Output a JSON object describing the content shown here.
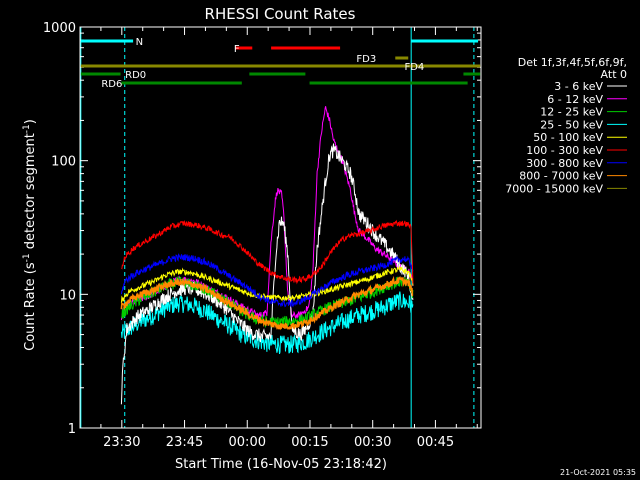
{
  "chart_data": {
    "type": "line",
    "title": "RHESSI Count Rates",
    "xlabel": "Start Time (16-Nov-05 23:18:42)",
    "ylabel_main": "Count Rate (s",
    "ylabel_sup1": "-1",
    "ylabel_mid": " detector segment",
    "ylabel_sup2": "-1",
    "ylabel_end": ")",
    "ylim": [
      1,
      1000
    ],
    "yscale": "log",
    "xlim_minutes": [
      1.3,
      97.2
    ],
    "x_ticks": [
      {
        "label": "23:30",
        "m": 11.3
      },
      {
        "label": "23:45",
        "m": 26.3
      },
      {
        "label": "00:00",
        "m": 41.3
      },
      {
        "label": "00:15",
        "m": 56.3
      },
      {
        "label": "00:30",
        "m": 71.3
      },
      {
        "label": "00:45",
        "m": 86.3
      }
    ],
    "y_ticks": [
      {
        "label": "1",
        "v": 1
      },
      {
        "label": "10",
        "v": 10
      },
      {
        "label": "100",
        "v": 100
      },
      {
        "label": "1000",
        "v": 1000
      }
    ],
    "footer": "21-Oct-2021 05:35",
    "legend_header": [
      "Det 1f,3f,4f,5f,6f,9f,",
      "Att 0"
    ],
    "series": [
      {
        "name": "3 - 6 keV",
        "color": "#ffffff",
        "points": [
          [
            11.2,
            1.6
          ],
          [
            11.6,
            3.0
          ],
          [
            12.5,
            5.5
          ],
          [
            15,
            6.8
          ],
          [
            18,
            7.8
          ],
          [
            21,
            9.2
          ],
          [
            24,
            10.5
          ],
          [
            27,
            11.2
          ],
          [
            30,
            10.6
          ],
          [
            33,
            9.5
          ],
          [
            36,
            8.0
          ],
          [
            39,
            6.3
          ],
          [
            42,
            5.2
          ],
          [
            45,
            4.8
          ],
          [
            47,
            4.9
          ],
          [
            48,
            18
          ],
          [
            49,
            35
          ],
          [
            50,
            34
          ],
          [
            51,
            20
          ],
          [
            52,
            5.5
          ],
          [
            54,
            5.0
          ],
          [
            55,
            5.3
          ],
          [
            57,
            7
          ],
          [
            58,
            22
          ],
          [
            60,
            70
          ],
          [
            61,
            110
          ],
          [
            62,
            120
          ],
          [
            64,
            100
          ],
          [
            66,
            80
          ],
          [
            67,
            60
          ],
          [
            68,
            40
          ],
          [
            70,
            34
          ],
          [
            72,
            28
          ],
          [
            74,
            24
          ],
          [
            76,
            20
          ],
          [
            77,
            18
          ],
          [
            78,
            16
          ],
          [
            79,
            15
          ],
          [
            80,
            13
          ],
          [
            81,
            8
          ]
        ]
      },
      {
        "name": "6 - 12 keV",
        "color": "#ff00ff",
        "points": [
          [
            11.2,
            6.8
          ],
          [
            12,
            8
          ],
          [
            14,
            8.8
          ],
          [
            17,
            9.5
          ],
          [
            20,
            10.5
          ],
          [
            23,
            12.3
          ],
          [
            26,
            13
          ],
          [
            29,
            12.5
          ],
          [
            32,
            11
          ],
          [
            35,
            10
          ],
          [
            38,
            8.8
          ],
          [
            41,
            7.8
          ],
          [
            44,
            6.9
          ],
          [
            46,
            7.3
          ],
          [
            47,
            25
          ],
          [
            48,
            50
          ],
          [
            48.5,
            60
          ],
          [
            49.5,
            56
          ],
          [
            50,
            40
          ],
          [
            51,
            10
          ],
          [
            52,
            6.9
          ],
          [
            54,
            7
          ],
          [
            56,
            8
          ],
          [
            57,
            15
          ],
          [
            58,
            80
          ],
          [
            59,
            160
          ],
          [
            60,
            250
          ],
          [
            61,
            200
          ],
          [
            62,
            140
          ],
          [
            64,
            100
          ],
          [
            66,
            60
          ],
          [
            67,
            40
          ],
          [
            68,
            30
          ],
          [
            70,
            26
          ],
          [
            72,
            22
          ],
          [
            74,
            20
          ],
          [
            76,
            18
          ],
          [
            78,
            16
          ],
          [
            80,
            15
          ],
          [
            81,
            12
          ]
        ]
      },
      {
        "name": "12 - 25 keV",
        "color": "#00cc00",
        "points": [
          [
            11.2,
            7
          ],
          [
            13,
            8
          ],
          [
            16,
            9.3
          ],
          [
            19,
            10.4
          ],
          [
            22,
            11.7
          ],
          [
            25,
            12.3
          ],
          [
            28,
            11.8
          ],
          [
            31,
            11
          ],
          [
            34,
            9.8
          ],
          [
            37,
            8.6
          ],
          [
            40,
            7.4
          ],
          [
            43,
            6.6
          ],
          [
            46,
            6.2
          ],
          [
            49,
            6.2
          ],
          [
            52,
            6.3
          ],
          [
            55,
            6.5
          ],
          [
            58,
            7.3
          ],
          [
            61,
            8
          ],
          [
            64,
            8.6
          ],
          [
            67,
            9.2
          ],
          [
            70,
            10
          ],
          [
            73,
            11
          ],
          [
            76,
            12
          ],
          [
            78,
            12.5
          ],
          [
            80,
            11.8
          ],
          [
            81,
            9.6
          ]
        ]
      },
      {
        "name": "25 - 50 keV",
        "color": "#00ffff",
        "points": [
          [
            11.2,
            5.0
          ],
          [
            13,
            5.5
          ],
          [
            16,
            6.3
          ],
          [
            19,
            7
          ],
          [
            22,
            8
          ],
          [
            25,
            8.6
          ],
          [
            28,
            8.3
          ],
          [
            31,
            7.6
          ],
          [
            34,
            6.6
          ],
          [
            37,
            5.8
          ],
          [
            40,
            5.0
          ],
          [
            43,
            4.6
          ],
          [
            46,
            4.3
          ],
          [
            49,
            4.2
          ],
          [
            52,
            4.2
          ],
          [
            55,
            4.4
          ],
          [
            58,
            5.0
          ],
          [
            61,
            5.6
          ],
          [
            64,
            6.2
          ],
          [
            67,
            6.8
          ],
          [
            70,
            7.3
          ],
          [
            73,
            7.8
          ],
          [
            76,
            8.6
          ],
          [
            78,
            9
          ],
          [
            80,
            8.6
          ],
          [
            81,
            7.8
          ]
        ]
      },
      {
        "name": "50 - 100 keV",
        "color": "#ffff00",
        "points": [
          [
            11.2,
            9
          ],
          [
            13,
            10.5
          ],
          [
            16,
            11.5
          ],
          [
            19,
            12.5
          ],
          [
            22,
            14
          ],
          [
            25,
            14.8
          ],
          [
            28,
            14.5
          ],
          [
            31,
            13.5
          ],
          [
            34,
            12.5
          ],
          [
            37,
            11.5
          ],
          [
            40,
            10.6
          ],
          [
            43,
            9.9
          ],
          [
            46,
            9.5
          ],
          [
            49,
            9.4
          ],
          [
            52,
            9.4
          ],
          [
            55,
            9.7
          ],
          [
            58,
            10.2
          ],
          [
            61,
            10.8
          ],
          [
            64,
            11.5
          ],
          [
            67,
            12.2
          ],
          [
            70,
            13
          ],
          [
            73,
            14
          ],
          [
            76,
            15
          ],
          [
            78,
            15.3
          ],
          [
            80,
            14.5
          ],
          [
            81,
            12
          ]
        ]
      },
      {
        "name": "100 - 300 keV",
        "color": "#ff0000",
        "points": [
          [
            11.2,
            15
          ],
          [
            12,
            19
          ],
          [
            14,
            22
          ],
          [
            17,
            25
          ],
          [
            20,
            28
          ],
          [
            23,
            32
          ],
          [
            26,
            34
          ],
          [
            29,
            33
          ],
          [
            32,
            31
          ],
          [
            35,
            28
          ],
          [
            37,
            27
          ],
          [
            39,
            24
          ],
          [
            41,
            21
          ],
          [
            43,
            18
          ],
          [
            45,
            16
          ],
          [
            48,
            14
          ],
          [
            51,
            13
          ],
          [
            53,
            12.8
          ],
          [
            55,
            13
          ],
          [
            57,
            14
          ],
          [
            59,
            16
          ],
          [
            61,
            20
          ],
          [
            63,
            24
          ],
          [
            65,
            27
          ],
          [
            67,
            28
          ],
          [
            69,
            29
          ],
          [
            71,
            30
          ],
          [
            73,
            32
          ],
          [
            75,
            33
          ],
          [
            77,
            34
          ],
          [
            79,
            34
          ],
          [
            80.5,
            32
          ],
          [
            81,
            10
          ]
        ]
      },
      {
        "name": "300 - 800 keV",
        "color": "#0000ff",
        "points": [
          [
            11.2,
            10
          ],
          [
            12,
            12.5
          ],
          [
            14,
            14
          ],
          [
            17,
            15.5
          ],
          [
            20,
            16.8
          ],
          [
            23,
            18.5
          ],
          [
            26,
            19
          ],
          [
            29,
            18.5
          ],
          [
            32,
            17
          ],
          [
            35,
            15
          ],
          [
            38,
            13
          ],
          [
            41,
            11.5
          ],
          [
            44,
            9.8
          ],
          [
            47,
            8.8
          ],
          [
            50,
            8.5
          ],
          [
            53,
            8.6
          ],
          [
            56,
            9.5
          ],
          [
            59,
            11
          ],
          [
            62,
            12.5
          ],
          [
            65,
            13.8
          ],
          [
            68,
            14.8
          ],
          [
            71,
            15.5
          ],
          [
            74,
            16.5
          ],
          [
            77,
            18
          ],
          [
            79,
            18.5
          ],
          [
            80.5,
            17
          ],
          [
            81,
            14
          ]
        ]
      },
      {
        "name": "800 - 7000 keV",
        "color": "#ff8800",
        "points": [
          [
            11.2,
            8
          ],
          [
            13,
            9
          ],
          [
            16,
            10
          ],
          [
            19,
            10.8
          ],
          [
            22,
            11.8
          ],
          [
            25,
            12.3
          ],
          [
            28,
            12
          ],
          [
            31,
            11
          ],
          [
            34,
            9.8
          ],
          [
            37,
            8.6
          ],
          [
            40,
            7.6
          ],
          [
            43,
            6.7
          ],
          [
            46,
            6.1
          ],
          [
            49,
            5.8
          ],
          [
            52,
            5.8
          ],
          [
            55,
            6.1
          ],
          [
            58,
            6.9
          ],
          [
            61,
            7.8
          ],
          [
            64,
            8.8
          ],
          [
            67,
            9.7
          ],
          [
            70,
            10.5
          ],
          [
            73,
            11.3
          ],
          [
            76,
            12.3
          ],
          [
            78,
            12.8
          ],
          [
            80,
            12
          ],
          [
            81,
            10
          ]
        ]
      },
      {
        "name": "7000 - 15000 keV",
        "color": "#888800",
        "points": []
      }
    ],
    "flag_bars": [
      {
        "label": "N",
        "color": "#00ffff",
        "y": 41,
        "label_m": 14.6,
        "segments": [
          [
            1.5,
            14.0
          ],
          [
            80.5,
            96.5
          ]
        ]
      },
      {
        "label": "F",
        "color": "#ff0000",
        "y": 48,
        "label_m": 38.1,
        "segments": [
          [
            38.5,
            42.5
          ],
          [
            47.0,
            63.5
          ]
        ]
      },
      {
        "label": "FD3",
        "color": "#888800",
        "y": 58,
        "label_m": 67.4,
        "segments": [
          [
            76.7,
            79.8
          ]
        ]
      },
      {
        "label": "FD4",
        "color": "#888800",
        "y": 66,
        "label_m": 78.9,
        "segments": [
          [
            1.5,
            97.0
          ]
        ]
      },
      {
        "label": "RD0",
        "color": "#008800",
        "y": 74,
        "label_m": 12.1,
        "segments": [
          [
            1.5,
            11.0
          ],
          [
            41.8,
            55.2
          ],
          [
            93.0,
            97.0
          ]
        ]
      },
      {
        "label": "RD6",
        "color": "#008800",
        "y": 83,
        "label_m": 6.4,
        "segments": [
          [
            11.2,
            40.0
          ],
          [
            56.2,
            94.0
          ]
        ]
      }
    ],
    "vlines": [
      {
        "m": 1.5,
        "color": "#00ffff",
        "style": "solid"
      },
      {
        "m": 12.0,
        "color": "#00ffff",
        "style": "dash"
      },
      {
        "m": 80.5,
        "color": "#00ffff",
        "style": "solid"
      },
      {
        "m": 95.5,
        "color": "#00ffff",
        "style": "dash"
      }
    ]
  }
}
